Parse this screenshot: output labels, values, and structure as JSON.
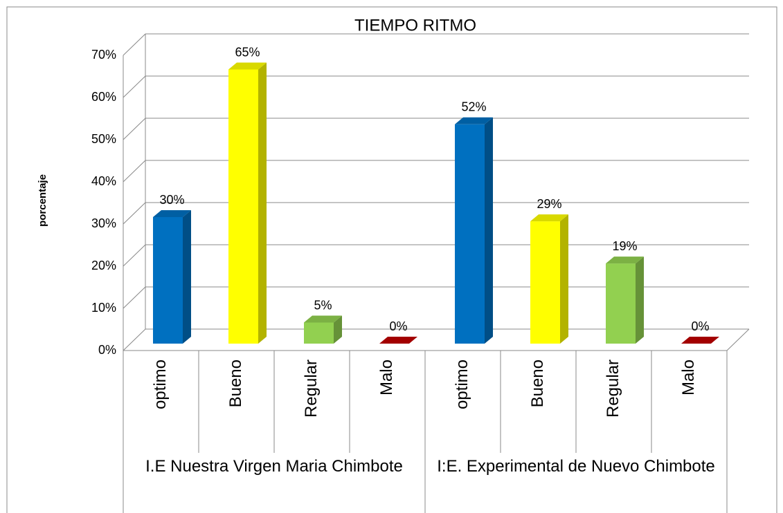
{
  "chart_data": {
    "type": "bar3d",
    "title": "TIEMPO  RITMO",
    "y_label": "porcentaje",
    "categories": [
      "optimo",
      "Bueno",
      "Regular",
      "Malo",
      "optimo",
      "Bueno",
      "Regular",
      "Malo"
    ],
    "groups": [
      "I.E Nuestra  Virgen Maria Chimbote",
      "I:E. Experimental  de Nuevo Chimbote"
    ],
    "values": [
      30,
      65,
      5,
      0,
      52,
      29,
      19,
      0
    ],
    "value_labels": [
      "30%",
      "65%",
      "5%",
      "0%",
      "52%",
      "29%",
      "19%",
      "0%"
    ],
    "colors": [
      "#0070c0",
      "#ffff00",
      "#92d050",
      "#c00000",
      "#0070c0",
      "#ffff00",
      "#92d050",
      "#c00000"
    ],
    "ylim": [
      0,
      70
    ],
    "yticks": [
      {
        "value": 0,
        "label": "0%"
      },
      {
        "value": 10,
        "label": "10%"
      },
      {
        "value": 20,
        "label": "20%"
      },
      {
        "value": 30,
        "label": "30%"
      },
      {
        "value": 40,
        "label": "40%"
      },
      {
        "value": 50,
        "label": "50%"
      },
      {
        "value": 60,
        "label": "60%"
      },
      {
        "value": 70,
        "label": "70%"
      }
    ],
    "grid": true
  }
}
